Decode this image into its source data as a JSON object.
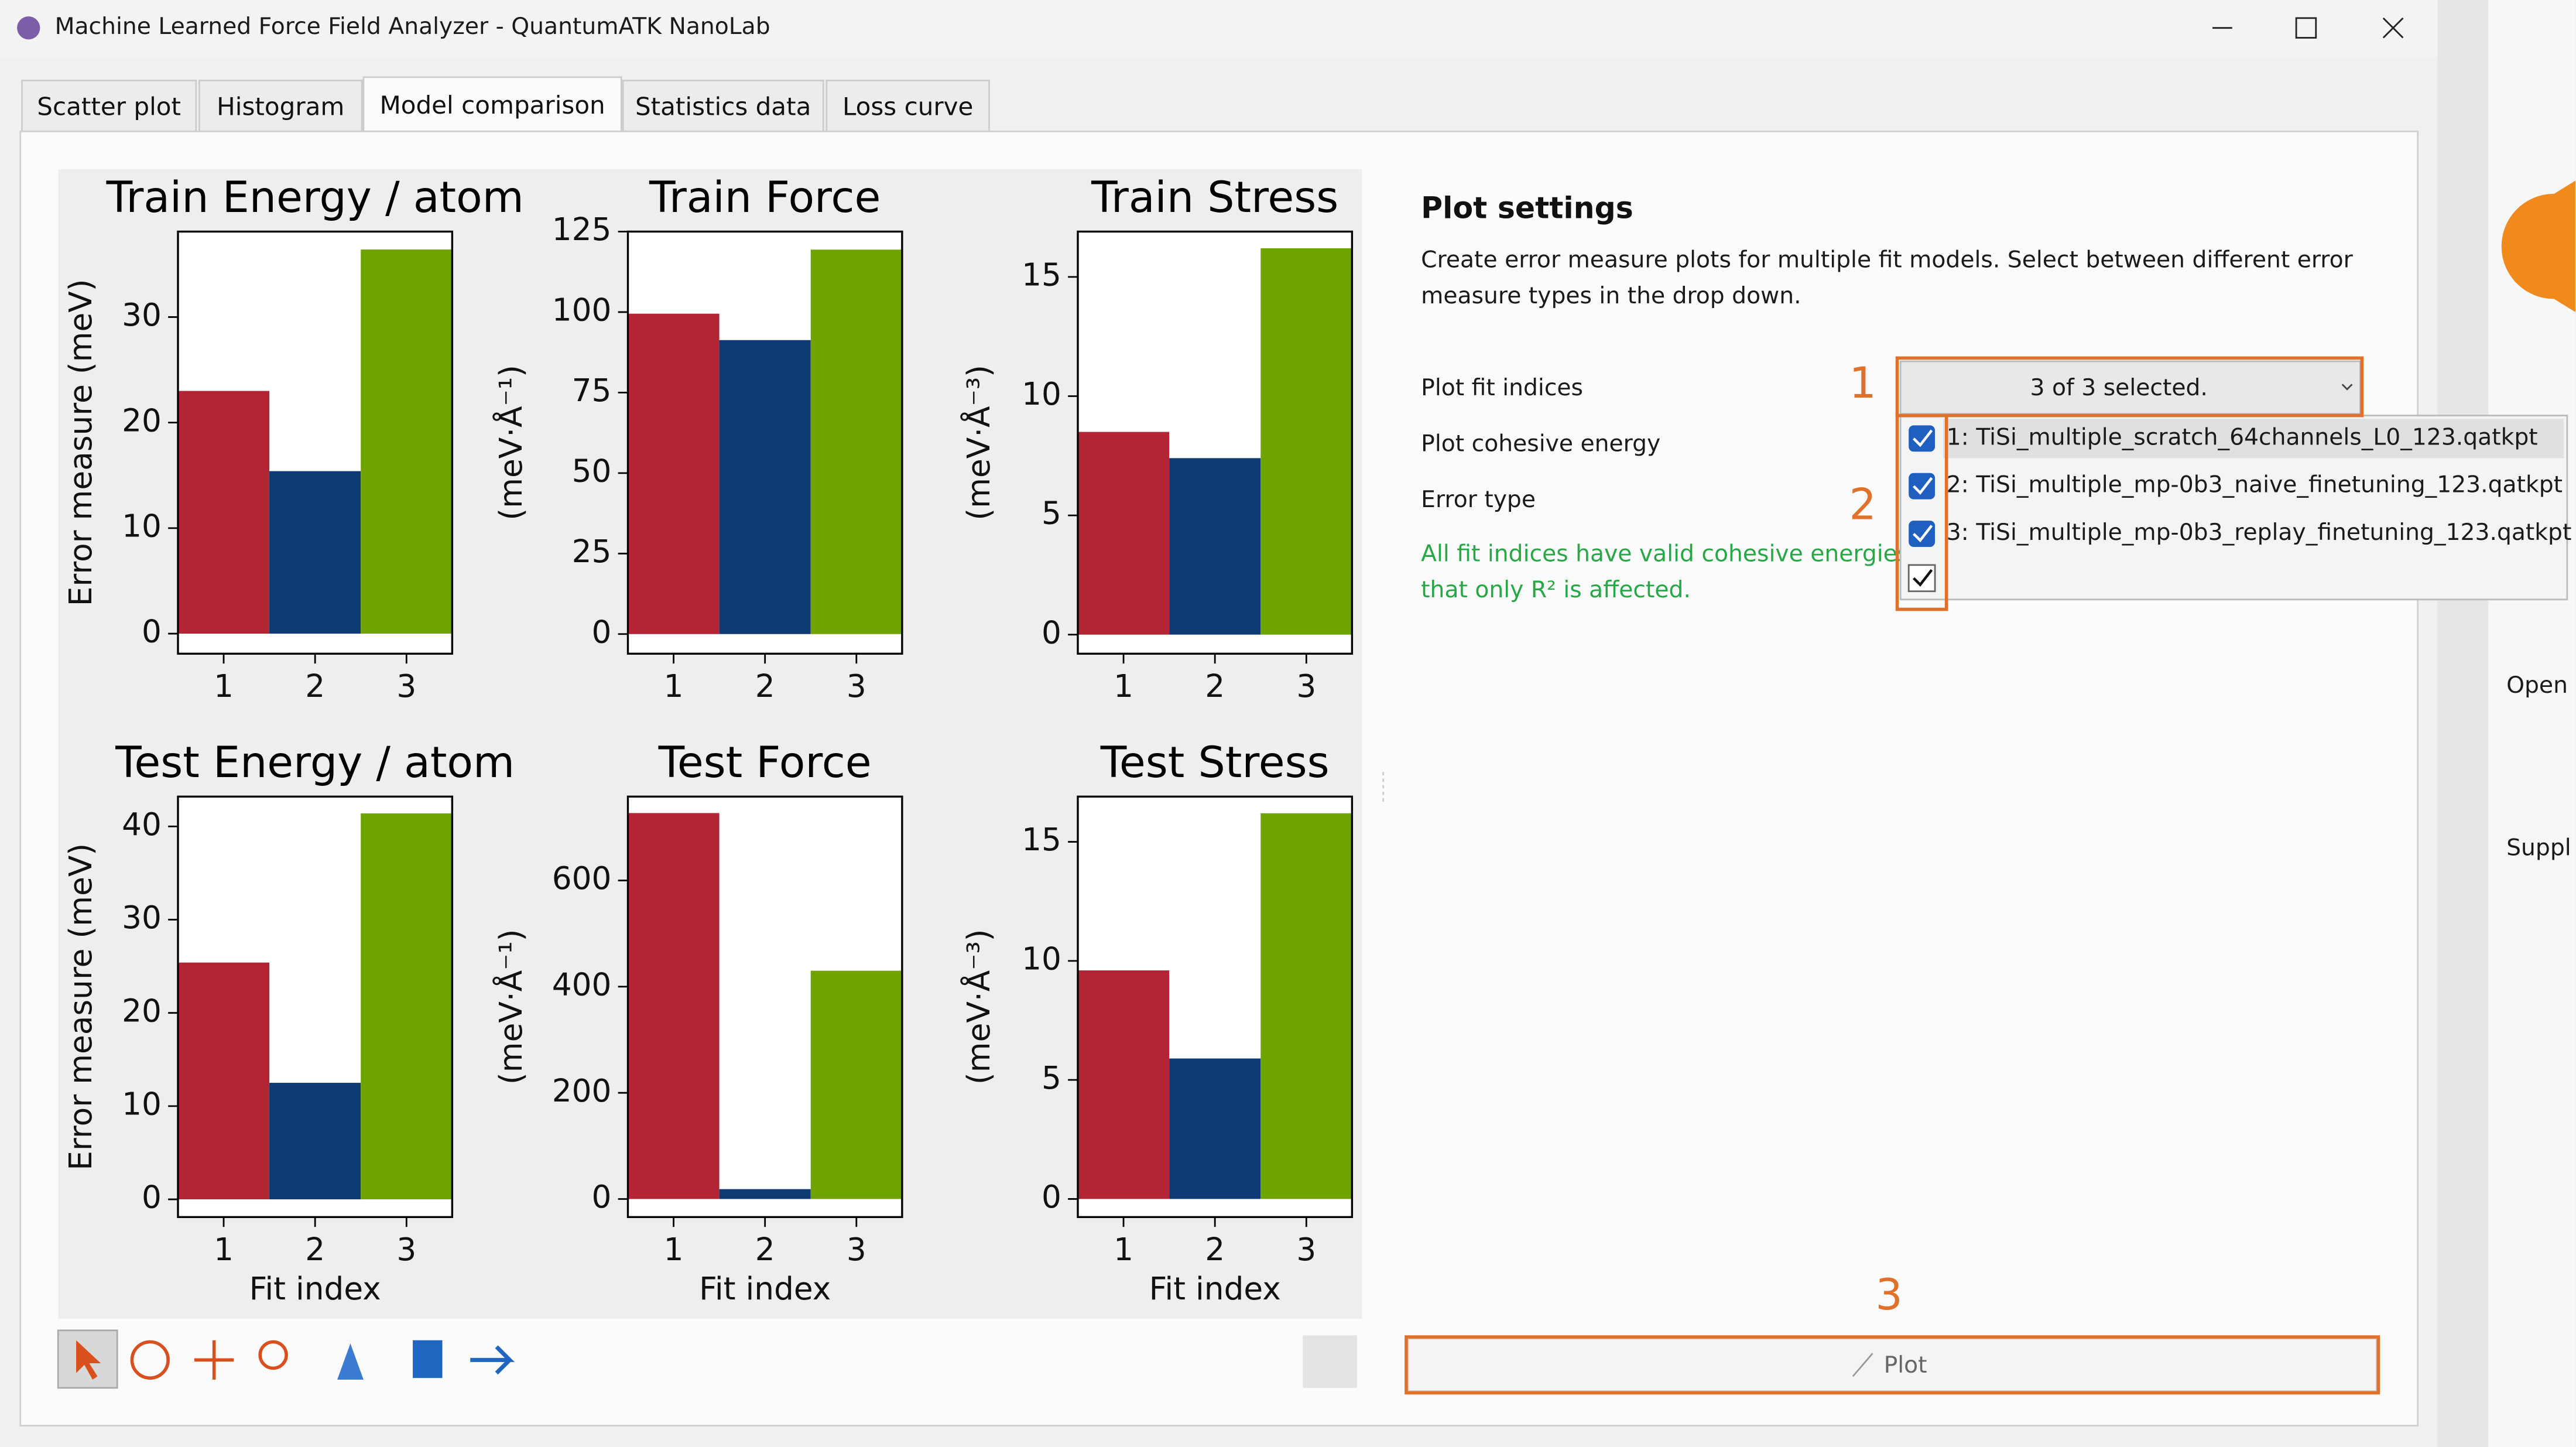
{
  "window": {
    "title": "Machine Learned Force Field Analyzer - QuantumATK NanoLab"
  },
  "tabs": [
    "Scatter plot",
    "Histogram",
    "Model comparison",
    "Statistics data",
    "Loss curve"
  ],
  "chart_data": [
    {
      "type": "bar",
      "title": "Train Energy / atom",
      "y_label": "Error measure (meV)",
      "categories": [
        "1",
        "2",
        "3"
      ],
      "values": [
        23.0,
        15.4,
        36.4
      ],
      "colors": [
        "#b22535",
        "#0e3a73",
        "#6fa300"
      ],
      "ylim": [
        -1.9,
        38.1
      ],
      "yticks": [
        0,
        10,
        20,
        30
      ]
    },
    {
      "type": "bar",
      "title": "Train Force",
      "y_label": "(meV·Å⁻¹)",
      "categories": [
        "1",
        "2",
        "3"
      ],
      "values": [
        99.5,
        91.3,
        119.4
      ],
      "colors": [
        "#b22535",
        "#0e3a73",
        "#6fa300"
      ],
      "ylim": [
        -6.1,
        125
      ],
      "yticks": [
        0,
        25,
        50,
        75,
        100,
        125
      ]
    },
    {
      "type": "bar",
      "title": "Train Stress",
      "y_label": "(meV·Å⁻³)",
      "categories": [
        "1",
        "2",
        "3"
      ],
      "values": [
        8.5,
        7.4,
        16.2
      ],
      "colors": [
        "#b22535",
        "#0e3a73",
        "#6fa300"
      ],
      "ylim": [
        -0.8,
        16.9
      ],
      "yticks": [
        0,
        5,
        10,
        15
      ]
    },
    {
      "type": "bar",
      "title": "Test Energy / atom",
      "y_label": "Error measure (meV)",
      "x_label": "Fit index",
      "categories": [
        "1",
        "2",
        "3"
      ],
      "values": [
        25.4,
        12.5,
        41.4
      ],
      "colors": [
        "#b22535",
        "#0e3a73",
        "#6fa300"
      ],
      "ylim": [
        -1.9,
        43.2
      ],
      "yticks": [
        0,
        10,
        20,
        30,
        40
      ]
    },
    {
      "type": "bar",
      "title": "Test Force",
      "y_label": "(meV·Å⁻¹)",
      "x_label": "Fit index",
      "categories": [
        "1",
        "2",
        "3"
      ],
      "values": [
        727,
        18.6,
        430
      ],
      "colors": [
        "#b22535",
        "#0e3a73",
        "#6fa300"
      ],
      "ylim": [
        -34,
        758
      ],
      "yticks": [
        0,
        200,
        400,
        600
      ]
    },
    {
      "type": "bar",
      "title": "Test Stress",
      "y_label": "(meV·Å⁻³)",
      "x_label": "Fit index",
      "categories": [
        "1",
        "2",
        "3"
      ],
      "values": [
        9.6,
        5.9,
        16.2
      ],
      "colors": [
        "#b22535",
        "#0e3a73",
        "#6fa300"
      ],
      "ylim": [
        -0.76,
        16.9
      ],
      "yticks": [
        0,
        5,
        10,
        15
      ]
    }
  ],
  "settings": {
    "heading": "Plot settings",
    "description": [
      "Create error measure plots for multiple fit models. Select between different error",
      "measure types in the drop down."
    ],
    "labels": [
      "Plot fit indices",
      "Plot cohesive energy",
      "Error type"
    ],
    "notice": [
      "All fit indices have valid cohesive energies v",
      "that only R² is affected."
    ],
    "dropdown": "3 of 3 selected.",
    "options": [
      "1: TiSi_multiple_scratch_64channels_L0_123.qatkpt",
      "2: TiSi_multiple_mp-0b3_naive_finetuning_123.qatkpt",
      "3: TiSi_multiple_mp-0b3_replay_finetuning_123.qatkpt"
    ],
    "plot_button": "Plot"
  },
  "annotations": [
    "1",
    "2",
    "3"
  ],
  "background_app": {
    "labels": [
      "Open",
      "Suppl"
    ]
  }
}
